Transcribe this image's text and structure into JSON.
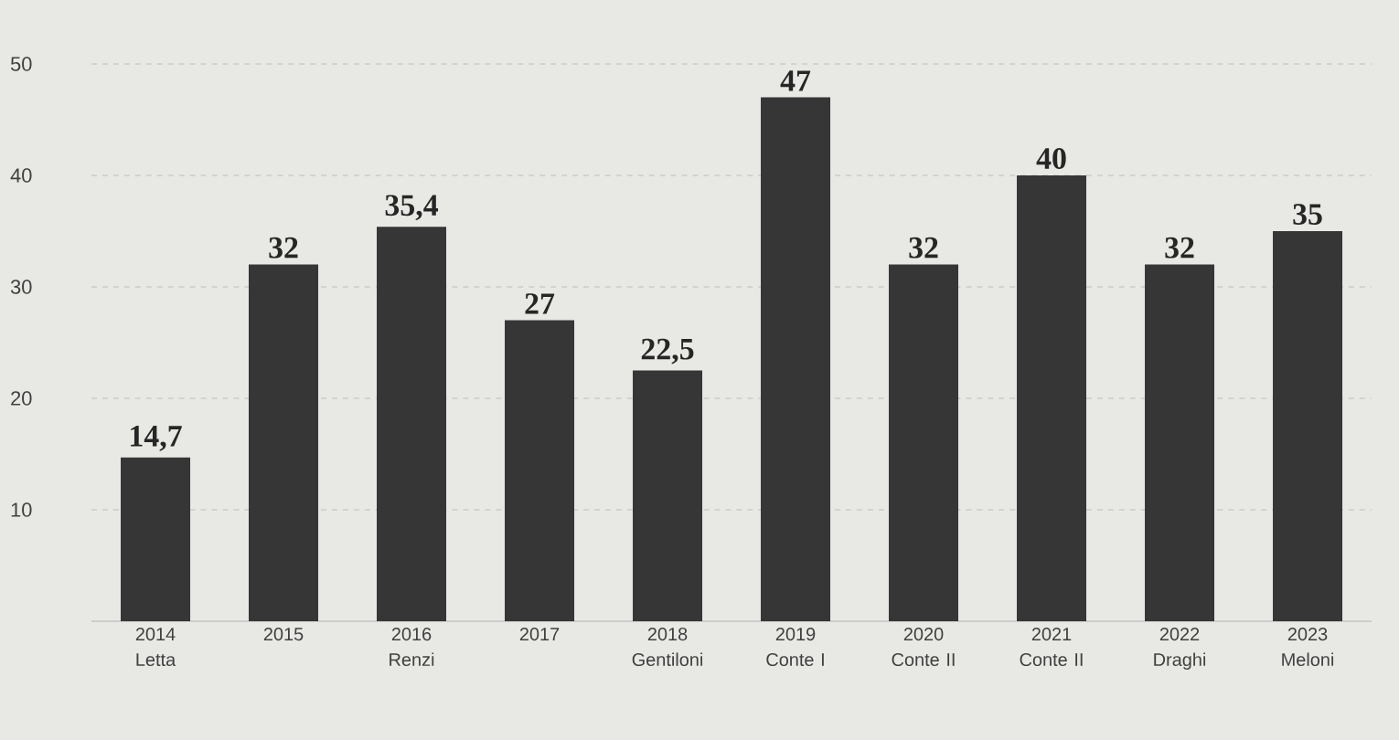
{
  "chart_data": {
    "type": "bar",
    "categories": [
      "2014 Letta",
      "2015",
      "2016 Renzi",
      "2017",
      "2018 Gentiloni",
      "2019 Conte I",
      "2020 Conte II",
      "2021 Conte II",
      "2022 Draghi",
      "2023 Meloni"
    ],
    "values": [
      14.7,
      32,
      35.4,
      27,
      22.5,
      47,
      32,
      40,
      32,
      35
    ],
    "value_labels": [
      "14,7",
      "32",
      "35,4",
      "27",
      "22,5",
      "47",
      "32",
      "40",
      "32",
      "35"
    ],
    "color": "#363636",
    "ylim": [
      0,
      50
    ],
    "yticks": [
      10,
      20,
      30,
      40,
      50
    ],
    "grid": "y"
  }
}
